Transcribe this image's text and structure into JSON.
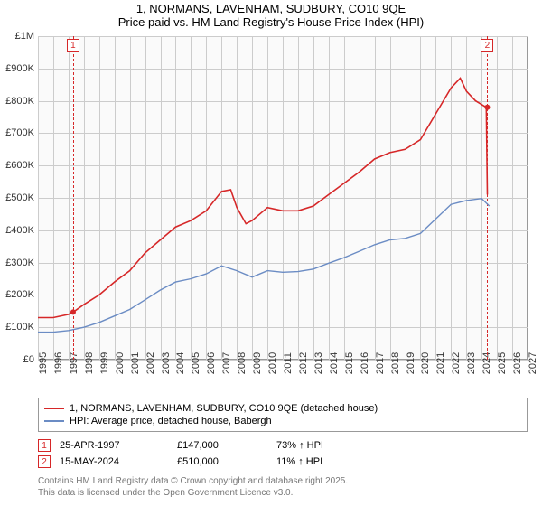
{
  "title_line1": "1, NORMANS, LAVENHAM, SUDBURY, CO10 9QE",
  "title_line2": "Price paid vs. HM Land Registry's House Price Index (HPI)",
  "chart": {
    "type": "line",
    "background_color": "#fafafa",
    "border_color": "#999999",
    "grid_color": "#cccccc",
    "x": {
      "min": 1995,
      "max": 2027,
      "tick_step": 1,
      "label_fontsize": 11,
      "rotation": -90
    },
    "y": {
      "min": 0,
      "max": 1000000,
      "tick_step": 100000,
      "labels": [
        "£0",
        "£100K",
        "£200K",
        "£300K",
        "£400K",
        "£500K",
        "£600K",
        "£700K",
        "£800K",
        "£900K",
        "£1M"
      ],
      "label_fontsize": 11
    },
    "series": [
      {
        "name": "1, NORMANS, LAVENHAM, SUDBURY, CO10 9QE (detached house)",
        "color": "#d62728",
        "width": 1.6,
        "points": [
          [
            1995,
            130000
          ],
          [
            1996,
            130000
          ],
          [
            1997,
            140000
          ],
          [
            1997.3,
            147000
          ],
          [
            1998,
            170000
          ],
          [
            1999,
            200000
          ],
          [
            2000,
            240000
          ],
          [
            2001,
            275000
          ],
          [
            2002,
            330000
          ],
          [
            2003,
            370000
          ],
          [
            2004,
            410000
          ],
          [
            2005,
            430000
          ],
          [
            2006,
            460000
          ],
          [
            2007,
            520000
          ],
          [
            2007.6,
            525000
          ],
          [
            2008,
            470000
          ],
          [
            2008.6,
            420000
          ],
          [
            2009,
            430000
          ],
          [
            2010,
            470000
          ],
          [
            2011,
            460000
          ],
          [
            2012,
            460000
          ],
          [
            2013,
            475000
          ],
          [
            2014,
            510000
          ],
          [
            2015,
            545000
          ],
          [
            2016,
            580000
          ],
          [
            2017,
            620000
          ],
          [
            2018,
            640000
          ],
          [
            2019,
            650000
          ],
          [
            2020,
            680000
          ],
          [
            2021,
            760000
          ],
          [
            2022,
            840000
          ],
          [
            2022.6,
            870000
          ],
          [
            2023,
            830000
          ],
          [
            2023.6,
            800000
          ],
          [
            2024.3,
            780000
          ],
          [
            2024.37,
            510000
          ]
        ]
      },
      {
        "name": "HPI: Average price, detached house, Babergh",
        "color": "#6b8cc4",
        "width": 1.4,
        "points": [
          [
            1995,
            85000
          ],
          [
            1996,
            85000
          ],
          [
            1997,
            90000
          ],
          [
            1998,
            100000
          ],
          [
            1999,
            115000
          ],
          [
            2000,
            135000
          ],
          [
            2001,
            155000
          ],
          [
            2002,
            185000
          ],
          [
            2003,
            215000
          ],
          [
            2004,
            240000
          ],
          [
            2005,
            250000
          ],
          [
            2006,
            265000
          ],
          [
            2007,
            290000
          ],
          [
            2008,
            275000
          ],
          [
            2009,
            255000
          ],
          [
            2010,
            275000
          ],
          [
            2011,
            270000
          ],
          [
            2012,
            272000
          ],
          [
            2013,
            280000
          ],
          [
            2014,
            298000
          ],
          [
            2015,
            315000
          ],
          [
            2016,
            335000
          ],
          [
            2017,
            355000
          ],
          [
            2018,
            370000
          ],
          [
            2019,
            375000
          ],
          [
            2020,
            390000
          ],
          [
            2021,
            435000
          ],
          [
            2022,
            480000
          ],
          [
            2023,
            492000
          ],
          [
            2024,
            498000
          ],
          [
            2024.5,
            475000
          ]
        ]
      }
    ],
    "markers": [
      {
        "n": "1",
        "x": 1997.3,
        "color": "#d62728",
        "box_top": true
      },
      {
        "n": "2",
        "x": 2024.37,
        "color": "#d62728",
        "box_top": true
      }
    ]
  },
  "legend": {
    "rows": [
      {
        "color": "#d62728",
        "label": "1, NORMANS, LAVENHAM, SUDBURY, CO10 9QE (detached house)"
      },
      {
        "color": "#6b8cc4",
        "label": "HPI: Average price, detached house, Babergh"
      }
    ]
  },
  "sales": [
    {
      "n": "1",
      "color": "#d62728",
      "date": "25-APR-1997",
      "price": "£147,000",
      "diff": "73% ↑ HPI"
    },
    {
      "n": "2",
      "color": "#d62728",
      "date": "15-MAY-2024",
      "price": "£510,000",
      "diff": "11% ↑ HPI"
    }
  ],
  "footer1": "Contains HM Land Registry data © Crown copyright and database right 2025.",
  "footer2": "This data is licensed under the Open Government Licence v3.0."
}
